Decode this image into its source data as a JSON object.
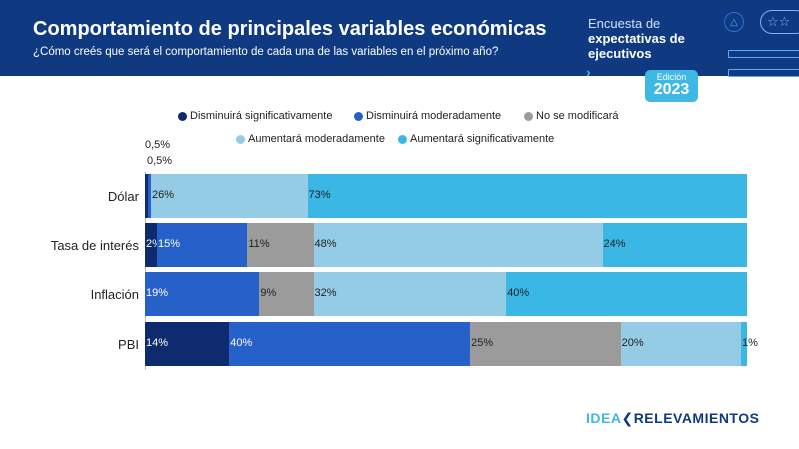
{
  "header": {
    "title": "Comportamiento de principales variables económicas",
    "subtitle": "¿Cómo creés que será el comportamiento de cada una de las variables en el próximo año?",
    "survey_line1": "Encuesta de",
    "survey_line2": "expectativas de",
    "survey_line3": "ejecutivos",
    "edition_label": "Edición",
    "edition_year": "2023"
  },
  "logo": {
    "part1": "IDEA",
    "part2": "RELEVAMIENTOS"
  },
  "chart_data": {
    "type": "stacked-bar-horizontal",
    "title": "Comportamiento de principales variables económicas",
    "categories": [
      "Dólar",
      "Tasa de interés",
      "Inflación",
      "PBI"
    ],
    "series": [
      {
        "name": "Disminuirá significativamente",
        "color": "#0d2b6e",
        "values": [
          0.5,
          2,
          0,
          14
        ],
        "labels": [
          "",
          "2%",
          "",
          "14%"
        ]
      },
      {
        "name": "Disminuirá moderadamente",
        "color": "#2661c9",
        "values": [
          0.5,
          15,
          19,
          40
        ],
        "labels": [
          "",
          "15%",
          "19%",
          "40%"
        ]
      },
      {
        "name": "No se modificará",
        "color": "#9b9b9b",
        "values": [
          0,
          11,
          9,
          25
        ],
        "labels": [
          "",
          "11%",
          "9%",
          "25%"
        ]
      },
      {
        "name": "Aumentará moderadamente",
        "color": "#93cce4",
        "values": [
          26,
          48,
          32,
          20
        ],
        "labels": [
          "26%",
          "48%",
          "32%",
          "20%"
        ]
      },
      {
        "name": "Aumentará significativamente",
        "color": "#3bb7e5",
        "values": [
          73,
          24,
          40,
          1
        ],
        "labels": [
          "73%",
          "24%",
          "40%",
          "1%"
        ]
      }
    ],
    "small_labels": [
      "0,5%",
      "0,5%"
    ],
    "xlim": [
      0,
      100
    ],
    "legend_position": "top"
  }
}
